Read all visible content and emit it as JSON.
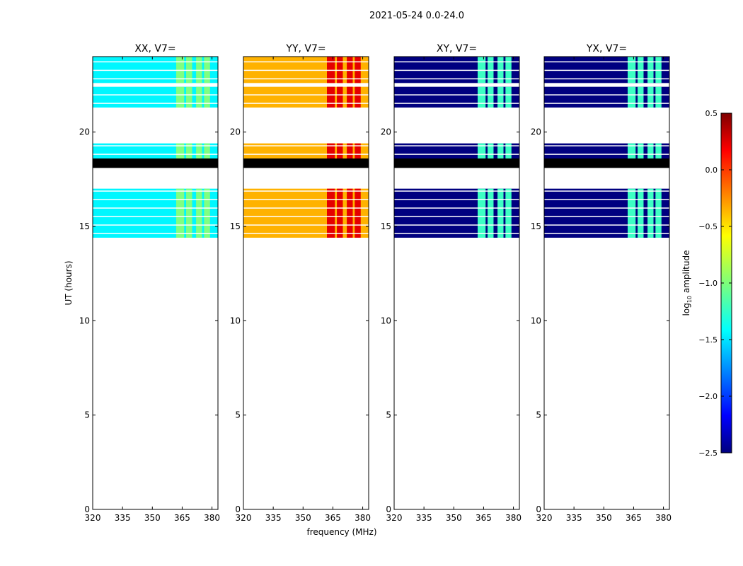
{
  "figure_title": "2021-05-24 0.0-24.0",
  "chart_data": {
    "type": "heatmap",
    "title": "2021-05-24 0.0-24.0",
    "xlabel": "frequency (MHz)",
    "ylabel": "UT (hours)",
    "xlim": [
      320,
      383
    ],
    "ylim": [
      0,
      24
    ],
    "x_ticks": [
      "320",
      "335",
      "350",
      "365",
      "380"
    ],
    "y_ticks": [
      "0",
      "5",
      "10",
      "15",
      "20"
    ],
    "panels": [
      {
        "title": "XX, V7=",
        "base_level": -1.4,
        "band_level": -1.0,
        "block_level": -1.0
      },
      {
        "title": "YY, V7=",
        "base_level": -0.4,
        "band_level": 0.2,
        "block_level": 0.2
      },
      {
        "title": "XY, V7=",
        "base_level": -2.5,
        "band_level": -1.2,
        "block_level": -2.5
      },
      {
        "title": "YX, V7=",
        "base_level": -2.5,
        "band_level": -1.2,
        "block_level": -2.5
      }
    ],
    "data_ut_ranges": [
      [
        14.4,
        17.0
      ],
      [
        18.6,
        19.4
      ],
      [
        21.3,
        22.4
      ],
      [
        22.6,
        24.0
      ]
    ],
    "flagged_ut_range": [
      18.1,
      18.6
    ],
    "colorbar": {
      "label": "log10 amplitude",
      "label_prefix": "log",
      "label_sub": "10",
      "label_suffix": " amplitude",
      "min": -2.5,
      "max": 0.5,
      "ticks": [
        "0.5",
        "0.0",
        "−0.5",
        "−1.0",
        "−1.5",
        "−2.0",
        "−2.5"
      ],
      "tick_values": [
        0.5,
        0.0,
        -0.5,
        -1.0,
        -1.5,
        -2.0,
        -2.5
      ],
      "colormap": "jet"
    }
  }
}
